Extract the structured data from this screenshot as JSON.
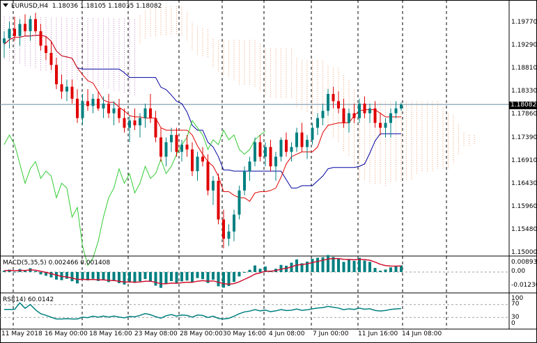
{
  "chart_header": {
    "symbol": "EURUSD,H4",
    "ohlc": "1.18036 1.18105 1.18035 1.18082"
  },
  "price_axis": [
    "1.19770",
    "1.19290",
    "1.18810",
    "1.18330",
    "1.17860",
    "1.17390",
    "1.16910",
    "1.16430",
    "1.15960",
    "1.15480",
    "1.15000"
  ],
  "current_price": "1.18082",
  "macd": {
    "label": "MACD(5,35,5) 0.002466 0.001408",
    "axis": [
      "0.008933",
      "0.00",
      "-0.012306"
    ]
  },
  "rsi": {
    "label": "RSI(14) 60.0142",
    "axis": [
      "100",
      "70",
      "30",
      "0"
    ]
  },
  "time_axis": [
    "11 May 2018",
    "16 May 00:00",
    "18 May 16:00",
    "23 May 08:00",
    "28 May 00:00",
    "30 May 16:00",
    "4 Jun 08:00",
    "7 Jun 00:00",
    "11 Jun 16:00",
    "14 Jun 08:00"
  ],
  "colors": {
    "bull": "#008080",
    "bear": "#e00000",
    "tenkan": "#e00000",
    "kijun": "#0000a0",
    "chikou": "#33cc33",
    "cloud_a": "#c080c0",
    "cloud_b": "#f0a070",
    "macd_hist": "#008080",
    "macd_signal": "#d01030",
    "rsi": "#008080"
  },
  "chart_data": {
    "type": "candlestick",
    "candles": [
      {
        "o": 1.1935,
        "h": 1.196,
        "l": 1.1905,
        "c": 1.1945
      },
      {
        "o": 1.1945,
        "h": 1.198,
        "l": 1.1925,
        "c": 1.1965
      },
      {
        "o": 1.1965,
        "h": 1.199,
        "l": 1.194,
        "c": 1.195
      },
      {
        "o": 1.195,
        "h": 1.1985,
        "l": 1.193,
        "c": 1.1975
      },
      {
        "o": 1.1975,
        "h": 1.1995,
        "l": 1.195,
        "c": 1.196
      },
      {
        "o": 1.196,
        "h": 1.1992,
        "l": 1.194,
        "c": 1.1985
      },
      {
        "o": 1.1985,
        "h": 1.1998,
        "l": 1.1955,
        "c": 1.196
      },
      {
        "o": 1.196,
        "h": 1.1975,
        "l": 1.192,
        "c": 1.193
      },
      {
        "o": 1.193,
        "h": 1.195,
        "l": 1.19,
        "c": 1.1915
      },
      {
        "o": 1.1915,
        "h": 1.194,
        "l": 1.188,
        "c": 1.189
      },
      {
        "o": 1.189,
        "h": 1.1905,
        "l": 1.184,
        "c": 1.185
      },
      {
        "o": 1.185,
        "h": 1.187,
        "l": 1.182,
        "c": 1.1835
      },
      {
        "o": 1.1835,
        "h": 1.186,
        "l": 1.1815,
        "c": 1.1845
      },
      {
        "o": 1.1845,
        "h": 1.186,
        "l": 1.181,
        "c": 1.182
      },
      {
        "o": 1.182,
        "h": 1.184,
        "l": 1.177,
        "c": 1.178
      },
      {
        "o": 1.178,
        "h": 1.183,
        "l": 1.1765,
        "c": 1.1815
      },
      {
        "o": 1.1815,
        "h": 1.184,
        "l": 1.1795,
        "c": 1.1805
      },
      {
        "o": 1.1805,
        "h": 1.183,
        "l": 1.179,
        "c": 1.182
      },
      {
        "o": 1.182,
        "h": 1.1835,
        "l": 1.1795,
        "c": 1.18
      },
      {
        "o": 1.18,
        "h": 1.1825,
        "l": 1.178,
        "c": 1.181
      },
      {
        "o": 1.181,
        "h": 1.183,
        "l": 1.178,
        "c": 1.179
      },
      {
        "o": 1.179,
        "h": 1.1815,
        "l": 1.1765,
        "c": 1.18
      },
      {
        "o": 1.18,
        "h": 1.182,
        "l": 1.177,
        "c": 1.178
      },
      {
        "o": 1.178,
        "h": 1.18,
        "l": 1.175,
        "c": 1.176
      },
      {
        "o": 1.176,
        "h": 1.1785,
        "l": 1.173,
        "c": 1.1775
      },
      {
        "o": 1.1775,
        "h": 1.18,
        "l": 1.1755,
        "c": 1.1765
      },
      {
        "o": 1.1765,
        "h": 1.179,
        "l": 1.174,
        "c": 1.178
      },
      {
        "o": 1.178,
        "h": 1.181,
        "l": 1.176,
        "c": 1.18
      },
      {
        "o": 1.18,
        "h": 1.183,
        "l": 1.177,
        "c": 1.178
      },
      {
        "o": 1.178,
        "h": 1.1795,
        "l": 1.173,
        "c": 1.174
      },
      {
        "o": 1.174,
        "h": 1.176,
        "l": 1.169,
        "c": 1.17
      },
      {
        "o": 1.17,
        "h": 1.174,
        "l": 1.168,
        "c": 1.173
      },
      {
        "o": 1.173,
        "h": 1.176,
        "l": 1.171,
        "c": 1.1745
      },
      {
        "o": 1.1745,
        "h": 1.176,
        "l": 1.17,
        "c": 1.171
      },
      {
        "o": 1.171,
        "h": 1.1735,
        "l": 1.169,
        "c": 1.1725
      },
      {
        "o": 1.1725,
        "h": 1.1745,
        "l": 1.17,
        "c": 1.1715
      },
      {
        "o": 1.1715,
        "h": 1.173,
        "l": 1.166,
        "c": 1.167
      },
      {
        "o": 1.167,
        "h": 1.171,
        "l": 1.165,
        "c": 1.17
      },
      {
        "o": 1.17,
        "h": 1.172,
        "l": 1.168,
        "c": 1.169
      },
      {
        "o": 1.169,
        "h": 1.1705,
        "l": 1.162,
        "c": 1.163
      },
      {
        "o": 1.163,
        "h": 1.166,
        "l": 1.16,
        "c": 1.165
      },
      {
        "o": 1.165,
        "h": 1.1665,
        "l": 1.156,
        "c": 1.157
      },
      {
        "o": 1.157,
        "h": 1.159,
        "l": 1.151,
        "c": 1.153
      },
      {
        "o": 1.153,
        "h": 1.156,
        "l": 1.1515,
        "c": 1.1545
      },
      {
        "o": 1.1545,
        "h": 1.159,
        "l": 1.1525,
        "c": 1.158
      },
      {
        "o": 1.158,
        "h": 1.164,
        "l": 1.157,
        "c": 1.163
      },
      {
        "o": 1.163,
        "h": 1.168,
        "l": 1.162,
        "c": 1.167
      },
      {
        "o": 1.167,
        "h": 1.17,
        "l": 1.165,
        "c": 1.169
      },
      {
        "o": 1.169,
        "h": 1.174,
        "l": 1.168,
        "c": 1.173
      },
      {
        "o": 1.173,
        "h": 1.1745,
        "l": 1.169,
        "c": 1.17
      },
      {
        "o": 1.17,
        "h": 1.173,
        "l": 1.168,
        "c": 1.172
      },
      {
        "o": 1.172,
        "h": 1.1735,
        "l": 1.167,
        "c": 1.168
      },
      {
        "o": 1.168,
        "h": 1.171,
        "l": 1.165,
        "c": 1.17
      },
      {
        "o": 1.17,
        "h": 1.174,
        "l": 1.169,
        "c": 1.1735
      },
      {
        "o": 1.1735,
        "h": 1.175,
        "l": 1.17,
        "c": 1.171
      },
      {
        "o": 1.171,
        "h": 1.173,
        "l": 1.169,
        "c": 1.172
      },
      {
        "o": 1.172,
        "h": 1.176,
        "l": 1.171,
        "c": 1.175
      },
      {
        "o": 1.175,
        "h": 1.177,
        "l": 1.171,
        "c": 1.172
      },
      {
        "o": 1.172,
        "h": 1.1745,
        "l": 1.1695,
        "c": 1.1735
      },
      {
        "o": 1.1735,
        "h": 1.177,
        "l": 1.1725,
        "c": 1.176
      },
      {
        "o": 1.176,
        "h": 1.179,
        "l": 1.1745,
        "c": 1.178
      },
      {
        "o": 1.178,
        "h": 1.181,
        "l": 1.1765,
        "c": 1.1795
      },
      {
        "o": 1.1795,
        "h": 1.184,
        "l": 1.1785,
        "c": 1.183
      },
      {
        "o": 1.183,
        "h": 1.1845,
        "l": 1.18,
        "c": 1.1815
      },
      {
        "o": 1.1815,
        "h": 1.1835,
        "l": 1.179,
        "c": 1.18
      },
      {
        "o": 1.18,
        "h": 1.182,
        "l": 1.176,
        "c": 1.177
      },
      {
        "o": 1.177,
        "h": 1.18,
        "l": 1.175,
        "c": 1.179
      },
      {
        "o": 1.179,
        "h": 1.181,
        "l": 1.177,
        "c": 1.178
      },
      {
        "o": 1.178,
        "h": 1.182,
        "l": 1.177,
        "c": 1.181
      },
      {
        "o": 1.181,
        "h": 1.1825,
        "l": 1.178,
        "c": 1.179
      },
      {
        "o": 1.179,
        "h": 1.181,
        "l": 1.177,
        "c": 1.18
      },
      {
        "o": 1.18,
        "h": 1.1815,
        "l": 1.176,
        "c": 1.177
      },
      {
        "o": 1.177,
        "h": 1.179,
        "l": 1.1745,
        "c": 1.176
      },
      {
        "o": 1.176,
        "h": 1.178,
        "l": 1.174,
        "c": 1.177
      },
      {
        "o": 1.177,
        "h": 1.18,
        "l": 1.174,
        "c": 1.179
      },
      {
        "o": 1.179,
        "h": 1.1815,
        "l": 1.178,
        "c": 1.18
      },
      {
        "o": 1.18,
        "h": 1.1812,
        "l": 1.1795,
        "c": 1.1808
      }
    ]
  }
}
